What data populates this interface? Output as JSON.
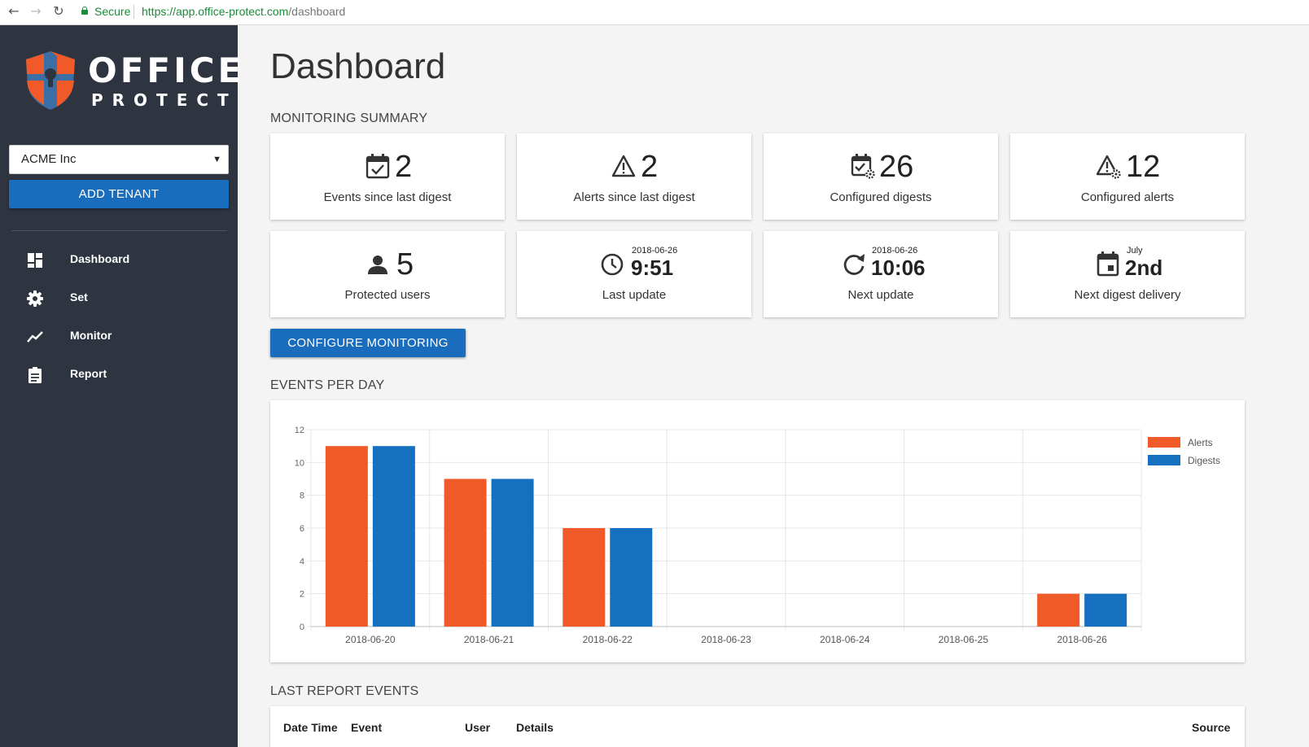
{
  "browser": {
    "secure_label": "Secure",
    "url_host": "https://app.office-protect.com",
    "url_path": "/dashboard"
  },
  "sidebar": {
    "logo_line1": "OFFICE",
    "logo_line2": "PROTECT",
    "tenant_value": "ACME Inc",
    "add_tenant_label": "ADD TENANT",
    "items": [
      {
        "label": "Dashboard",
        "icon": "dashboard-icon"
      },
      {
        "label": "Set",
        "icon": "gear-icon"
      },
      {
        "label": "Monitor",
        "icon": "trend-icon"
      },
      {
        "label": "Report",
        "icon": "clipboard-icon"
      }
    ]
  },
  "main": {
    "title": "Dashboard",
    "monitoring_summary_title": "MONITORING SUMMARY",
    "cards": [
      {
        "value": "2",
        "label": "Events since last digest",
        "icon": "calendar-check-icon"
      },
      {
        "value": "2",
        "label": "Alerts since last digest",
        "icon": "alert-icon"
      },
      {
        "value": "26",
        "label": "Configured digests",
        "icon": "calendar-gear-icon"
      },
      {
        "value": "12",
        "label": "Configured alerts",
        "icon": "alert-gear-icon"
      },
      {
        "value": "5",
        "label": "Protected users",
        "icon": "user-icon"
      },
      {
        "small": "2018-06-26",
        "value": "9:51",
        "label": "Last update",
        "icon": "clock-icon"
      },
      {
        "small": "2018-06-26",
        "value": "10:06",
        "label": "Next update",
        "icon": "refresh-icon"
      },
      {
        "small": "July",
        "value": "2nd",
        "label": "Next digest delivery",
        "icon": "calendar-icon"
      }
    ],
    "configure_label": "CONFIGURE MONITORING",
    "events_per_day_title": "EVENTS PER DAY",
    "last_report_title": "LAST REPORT EVENTS",
    "table_headers": [
      "Date Time",
      "Event",
      "User",
      "Details",
      "Source"
    ]
  },
  "colors": {
    "alerts": "#f05a28",
    "digests": "#1570c0",
    "sidebar": "#2e3440",
    "primary_button": "#1a6dbd"
  },
  "chart_data": {
    "type": "bar",
    "categories": [
      "2018-06-20",
      "2018-06-21",
      "2018-06-22",
      "2018-06-23",
      "2018-06-24",
      "2018-06-25",
      "2018-06-26"
    ],
    "series": [
      {
        "name": "Alerts",
        "values": [
          11,
          9,
          6,
          0,
          0,
          0,
          2
        ]
      },
      {
        "name": "Digests",
        "values": [
          11,
          9,
          6,
          0,
          0,
          0,
          2
        ]
      }
    ],
    "yticks": [
      "0",
      "2",
      "4",
      "6",
      "8",
      "10",
      "12"
    ],
    "ylim": [
      0,
      12
    ],
    "grid": true,
    "legend_position": "top-right"
  }
}
